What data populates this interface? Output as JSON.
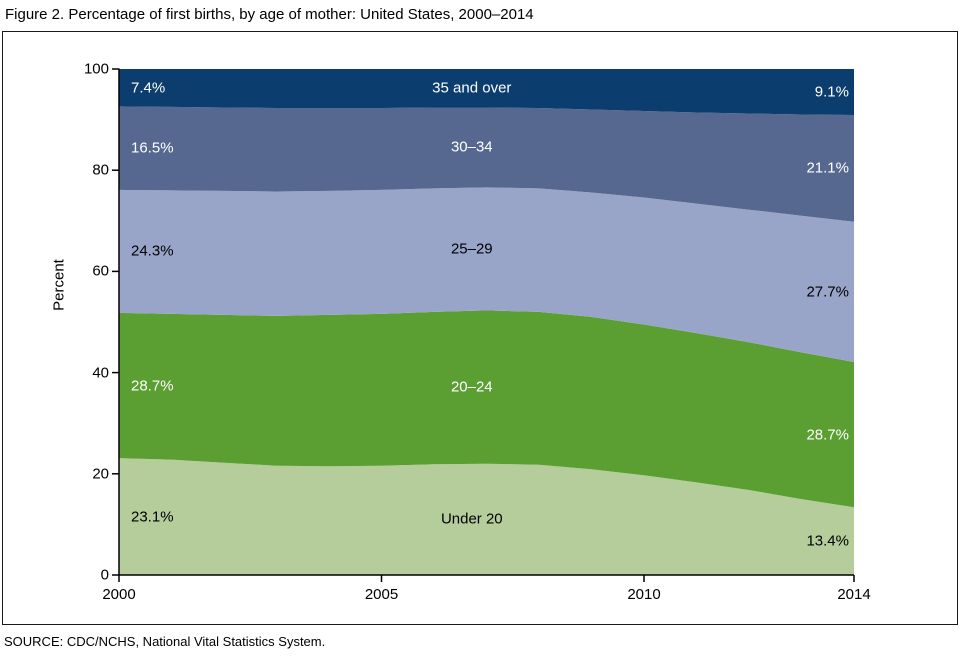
{
  "figure": {
    "title": "Figure 2. Percentage of first births, by age of mother: United States, 2000–2014",
    "ylabel": "Percent",
    "source": "SOURCE: CDC/NCHS, National Vital Statistics System."
  },
  "chart_data": {
    "type": "area",
    "stacked": true,
    "title": "Figure 2. Percentage of first births, by age of mother: United States, 2000–2014",
    "xlabel": "",
    "ylabel": "Percent",
    "ylim": [
      0,
      100
    ],
    "yticks": [
      0,
      20,
      40,
      60,
      80,
      100
    ],
    "xticks": [
      2000,
      2005,
      2010,
      2014
    ],
    "grid": false,
    "legend_position": "labels inside bands",
    "axis_color": "#000000",
    "x": [
      2000,
      2001,
      2002,
      2003,
      2004,
      2005,
      2006,
      2007,
      2008,
      2009,
      2010,
      2011,
      2012,
      2013,
      2014
    ],
    "series": [
      {
        "name": "Under 20",
        "color": "#b4cd9b",
        "label_color": "#000000",
        "start_label": "23.1%",
        "end_label": "13.4%",
        "values": [
          23.1,
          22.8,
          22.2,
          21.6,
          21.5,
          21.6,
          21.9,
          22.0,
          21.8,
          20.9,
          19.7,
          18.3,
          16.8,
          15.0,
          13.4
        ]
      },
      {
        "name": "20–24",
        "color": "#5b9e32",
        "label_color": "#ffffff",
        "start_label": "28.7%",
        "end_label": "28.7%",
        "values": [
          28.7,
          28.8,
          29.2,
          29.6,
          29.9,
          30.0,
          30.1,
          30.3,
          30.2,
          30.1,
          29.8,
          29.5,
          29.2,
          29.0,
          28.7
        ]
      },
      {
        "name": "25–29",
        "color": "#99a5c8",
        "label_color": "#000000",
        "start_label": "24.3%",
        "end_label": "27.7%",
        "values": [
          24.3,
          24.4,
          24.5,
          24.6,
          24.5,
          24.5,
          24.4,
          24.3,
          24.4,
          24.6,
          25.1,
          25.6,
          26.2,
          27.0,
          27.7
        ]
      },
      {
        "name": "30–34",
        "color": "#56688f",
        "label_color": "#ffffff",
        "start_label": "16.5%",
        "end_label": "21.1%",
        "values": [
          16.5,
          16.5,
          16.5,
          16.5,
          16.4,
          16.2,
          16.0,
          15.8,
          15.9,
          16.4,
          17.1,
          18.0,
          19.0,
          20.0,
          21.1
        ]
      },
      {
        "name": "35 and over",
        "color": "#0b3d6e",
        "label_color": "#ffffff",
        "start_label": "7.4%",
        "end_label": "9.1%",
        "values": [
          7.4,
          7.5,
          7.6,
          7.7,
          7.7,
          7.7,
          7.6,
          7.6,
          7.7,
          8.0,
          8.3,
          8.6,
          8.8,
          9.0,
          9.1
        ]
      }
    ]
  }
}
